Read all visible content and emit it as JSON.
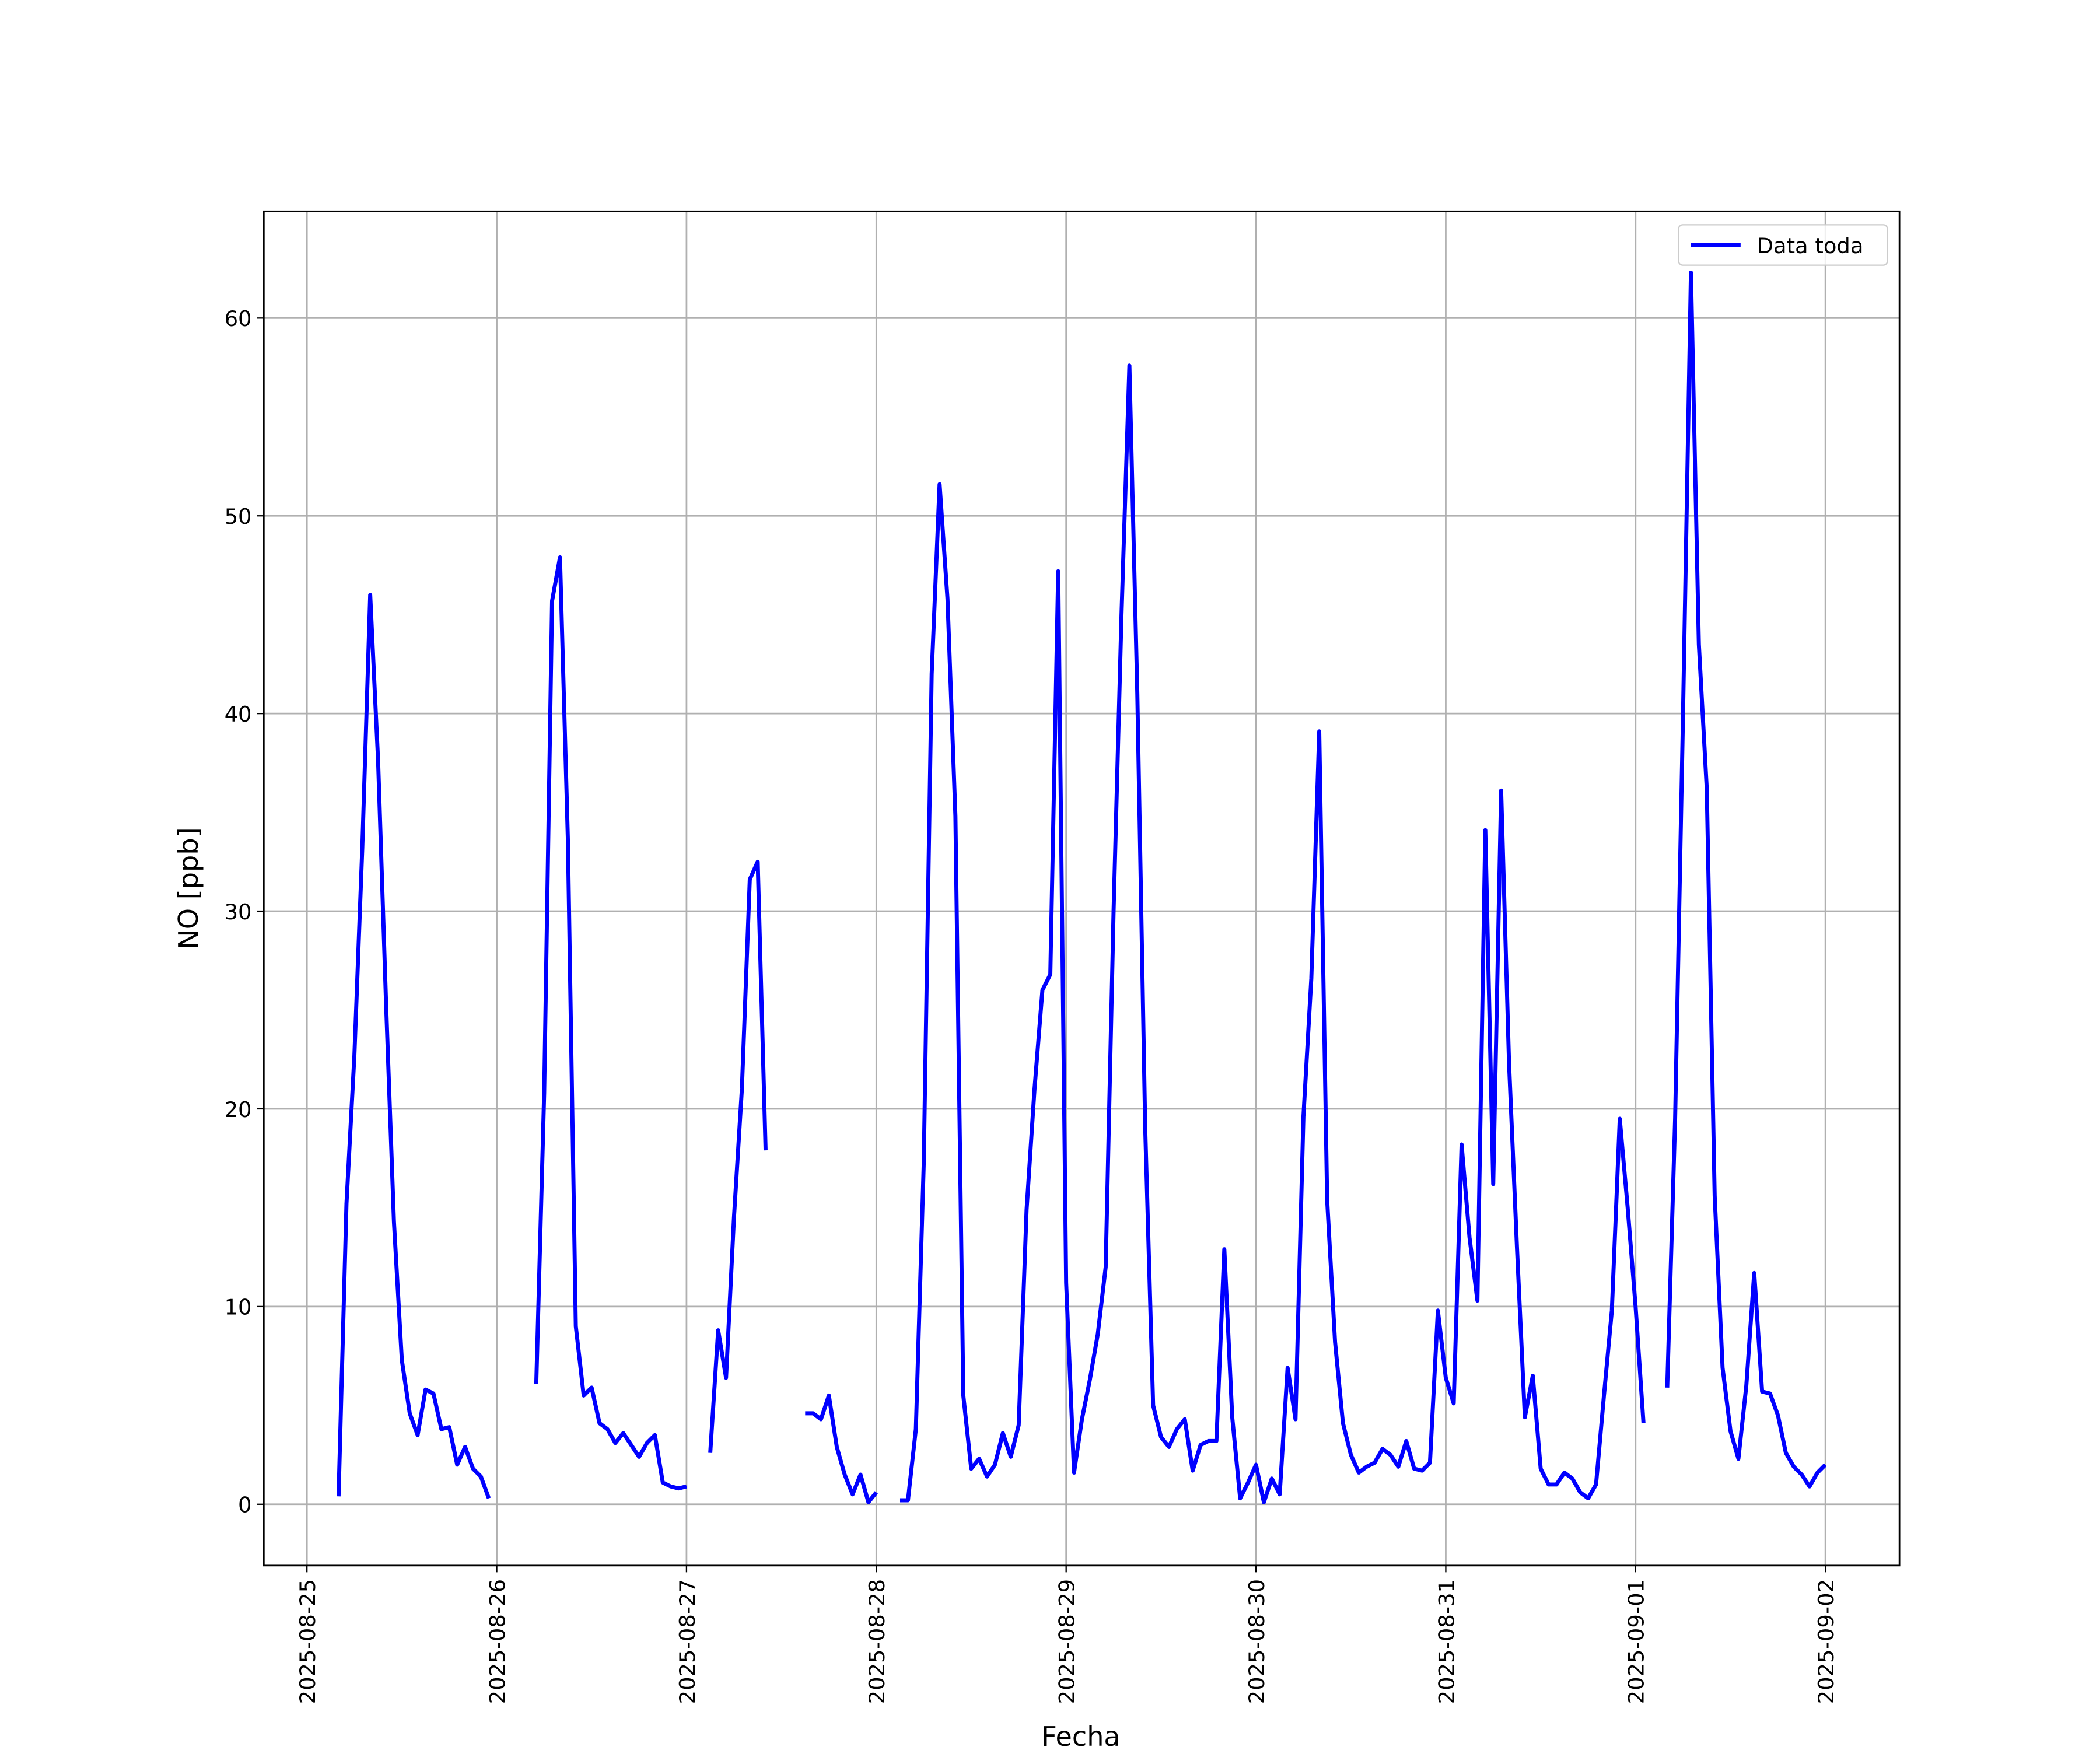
{
  "chart_data": {
    "type": "line",
    "xlabel": "Fecha",
    "ylabel": "NO [ppb]",
    "x": [
      "2025-08-25 04:00",
      "2025-08-25 05:00",
      "2025-08-25 06:00",
      "2025-08-25 07:00",
      "2025-08-25 08:00",
      "2025-08-25 09:00",
      "2025-08-25 10:00",
      "2025-08-25 11:00",
      "2025-08-25 12:00",
      "2025-08-25 13:00",
      "2025-08-25 14:00",
      "2025-08-25 15:00",
      "2025-08-25 16:00",
      "2025-08-25 17:00",
      "2025-08-25 18:00",
      "2025-08-25 19:00",
      "2025-08-25 20:00",
      "2025-08-25 21:00",
      "2025-08-25 22:00",
      "2025-08-25 23:00",
      "2025-08-26 00:00",
      "2025-08-26 01:00",
      "2025-08-26 02:00",
      "2025-08-26 03:00",
      "2025-08-26 04:00",
      "2025-08-26 05:00",
      "2025-08-26 06:00",
      "2025-08-26 07:00",
      "2025-08-26 08:00",
      "2025-08-26 09:00",
      "2025-08-26 10:00",
      "2025-08-26 11:00",
      "2025-08-26 12:00",
      "2025-08-26 13:00",
      "2025-08-26 14:00",
      "2025-08-26 15:00",
      "2025-08-26 16:00",
      "2025-08-26 17:00",
      "2025-08-26 18:00",
      "2025-08-26 19:00",
      "2025-08-26 20:00",
      "2025-08-26 21:00",
      "2025-08-26 22:00",
      "2025-08-26 23:00",
      "2025-08-27 00:00",
      "2025-08-27 01:00",
      "2025-08-27 02:00",
      "2025-08-27 03:00",
      "2025-08-27 04:00",
      "2025-08-27 05:00",
      "2025-08-27 06:00",
      "2025-08-27 07:00",
      "2025-08-27 08:00",
      "2025-08-27 09:00",
      "2025-08-27 10:00",
      "2025-08-27 11:00",
      "2025-08-27 12:00",
      "2025-08-27 13:00",
      "2025-08-27 14:00",
      "2025-08-27 15:00",
      "2025-08-27 16:00",
      "2025-08-27 17:00",
      "2025-08-27 18:00",
      "2025-08-27 19:00",
      "2025-08-27 20:00",
      "2025-08-27 21:00",
      "2025-08-27 22:00",
      "2025-08-27 23:00",
      "2025-08-28 00:00",
      "2025-08-28 01:00",
      "2025-08-28 02:00",
      "2025-08-28 03:00",
      "2025-08-28 04:00",
      "2025-08-28 05:00",
      "2025-08-28 06:00",
      "2025-08-28 07:00",
      "2025-08-28 08:00",
      "2025-08-28 09:00",
      "2025-08-28 10:00",
      "2025-08-28 11:00",
      "2025-08-28 12:00",
      "2025-08-28 13:00",
      "2025-08-28 14:00",
      "2025-08-28 15:00",
      "2025-08-28 16:00",
      "2025-08-28 17:00",
      "2025-08-28 18:00",
      "2025-08-28 19:00",
      "2025-08-28 20:00",
      "2025-08-28 21:00",
      "2025-08-28 22:00",
      "2025-08-28 23:00",
      "2025-08-29 00:00",
      "2025-08-29 01:00",
      "2025-08-29 02:00",
      "2025-08-29 03:00",
      "2025-08-29 04:00",
      "2025-08-29 05:00",
      "2025-08-29 06:00",
      "2025-08-29 07:00",
      "2025-08-29 08:00",
      "2025-08-29 09:00",
      "2025-08-29 10:00",
      "2025-08-29 11:00",
      "2025-08-29 12:00",
      "2025-08-29 13:00",
      "2025-08-29 14:00",
      "2025-08-29 15:00",
      "2025-08-29 16:00",
      "2025-08-29 17:00",
      "2025-08-29 18:00",
      "2025-08-29 19:00",
      "2025-08-29 20:00",
      "2025-08-29 21:00",
      "2025-08-29 22:00",
      "2025-08-29 23:00",
      "2025-08-30 00:00",
      "2025-08-30 01:00",
      "2025-08-30 02:00",
      "2025-08-30 03:00",
      "2025-08-30 04:00",
      "2025-08-30 05:00",
      "2025-08-30 06:00",
      "2025-08-30 07:00",
      "2025-08-30 08:00",
      "2025-08-30 09:00",
      "2025-08-30 10:00",
      "2025-08-30 11:00",
      "2025-08-30 12:00",
      "2025-08-30 13:00",
      "2025-08-30 14:00",
      "2025-08-30 15:00",
      "2025-08-30 16:00",
      "2025-08-30 17:00",
      "2025-08-30 18:00",
      "2025-08-30 19:00",
      "2025-08-30 20:00",
      "2025-08-30 21:00",
      "2025-08-30 22:00",
      "2025-08-30 23:00",
      "2025-08-31 00:00",
      "2025-08-31 01:00",
      "2025-08-31 02:00",
      "2025-08-31 03:00",
      "2025-08-31 04:00",
      "2025-08-31 05:00",
      "2025-08-31 06:00",
      "2025-08-31 07:00",
      "2025-08-31 08:00",
      "2025-08-31 09:00",
      "2025-08-31 10:00",
      "2025-08-31 11:00",
      "2025-08-31 12:00",
      "2025-08-31 13:00",
      "2025-08-31 14:00",
      "2025-08-31 15:00",
      "2025-08-31 16:00",
      "2025-08-31 17:00",
      "2025-08-31 18:00",
      "2025-08-31 19:00",
      "2025-08-31 20:00",
      "2025-08-31 21:00",
      "2025-08-31 22:00",
      "2025-08-31 23:00",
      "2025-09-01 00:00",
      "2025-09-01 01:00",
      "2025-09-01 02:00",
      "2025-09-01 03:00",
      "2025-09-01 04:00",
      "2025-09-01 05:00",
      "2025-09-01 06:00",
      "2025-09-01 07:00",
      "2025-09-01 08:00",
      "2025-09-01 09:00",
      "2025-09-01 10:00",
      "2025-09-01 11:00",
      "2025-09-01 12:00",
      "2025-09-01 13:00",
      "2025-09-01 14:00",
      "2025-09-01 15:00",
      "2025-09-01 16:00",
      "2025-09-01 17:00",
      "2025-09-01 18:00",
      "2025-09-01 19:00",
      "2025-09-01 20:00",
      "2025-09-01 21:00",
      "2025-09-01 22:00",
      "2025-09-01 23:00",
      "2025-09-02 00:00"
    ],
    "series": [
      {
        "name": "Data toda",
        "color": "#0000ff",
        "values": [
          0.4,
          15.2,
          22.7,
          33.2,
          46.0,
          37.6,
          25.4,
          14.3,
          7.3,
          4.6,
          3.5,
          5.8,
          5.6,
          3.8,
          3.9,
          2.0,
          2.9,
          1.8,
          1.4,
          0.3,
          null,
          null,
          null,
          null,
          null,
          6.1,
          20.8,
          45.7,
          47.9,
          33.6,
          9.0,
          5.5,
          5.9,
          4.1,
          3.8,
          3.1,
          3.6,
          3.0,
          2.4,
          3.1,
          3.5,
          1.1,
          0.9,
          0.8,
          0.9,
          null,
          null,
          2.6,
          8.8,
          6.4,
          14.5,
          21.0,
          31.6,
          32.5,
          17.9,
          null,
          null,
          null,
          null,
          4.6,
          4.6,
          4.3,
          5.5,
          2.9,
          1.5,
          0.5,
          1.5,
          0.1,
          0.6,
          null,
          null,
          0.2,
          0.2,
          3.8,
          17.3,
          42.0,
          51.6,
          45.8,
          34.8,
          5.5,
          1.8,
          2.3,
          1.4,
          2.0,
          3.6,
          2.4,
          4.0,
          14.9,
          21.0,
          26.0,
          26.8,
          47.2,
          11.2,
          1.6,
          4.3,
          6.3,
          8.6,
          12.0,
          30.0,
          45.0,
          57.6,
          41.0,
          19.0,
          5.0,
          3.4,
          2.9,
          3.8,
          4.3,
          1.7,
          3.0,
          3.2,
          3.2,
          12.9,
          4.4,
          0.3,
          1.1,
          2.0,
          0.1,
          1.3,
          0.5,
          6.9,
          4.3,
          19.6,
          26.6,
          39.1,
          15.4,
          8.2,
          4.1,
          2.5,
          1.6,
          1.9,
          2.1,
          2.8,
          2.5,
          1.9,
          3.2,
          1.8,
          1.7,
          2.1,
          9.8,
          6.4,
          5.1,
          18.2,
          13.5,
          10.3,
          34.1,
          16.2,
          36.1,
          22.3,
          13.0,
          4.4,
          6.5,
          1.8,
          1.0,
          1.0,
          1.6,
          1.3,
          0.6,
          0.3,
          1.0,
          5.5,
          9.8,
          19.5,
          15.0,
          10.0,
          4.1,
          null,
          null,
          5.9,
          19.5,
          40.0,
          62.3,
          43.5,
          36.2,
          15.6,
          6.9,
          3.7,
          2.3,
          6.0,
          11.7,
          5.7,
          5.6,
          4.5,
          2.6,
          1.9,
          1.5,
          0.9,
          1.6,
          2.0
        ]
      }
    ],
    "xlim": [
      "2025-08-24 18:33",
      "2025-09-02 09:22"
    ],
    "xticks": [
      "2025-08-25",
      "2025-08-26",
      "2025-08-27",
      "2025-08-28",
      "2025-08-29",
      "2025-08-30",
      "2025-08-31",
      "2025-09-01",
      "2025-09-02"
    ],
    "ylim": [
      -3.1,
      65.4
    ],
    "yticks": [
      0,
      10,
      20,
      30,
      40,
      50,
      60
    ],
    "grid": true,
    "legend": "upper right"
  }
}
